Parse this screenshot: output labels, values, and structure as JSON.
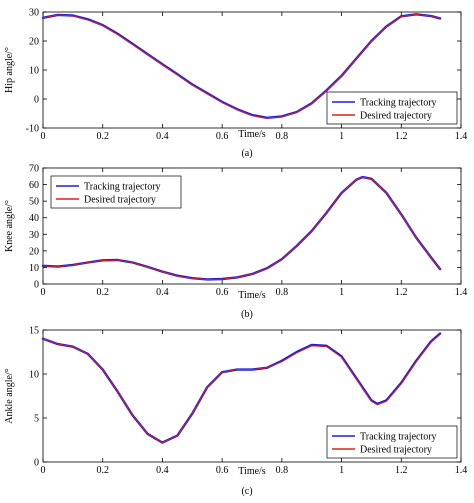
{
  "colors": {
    "tracking": "#1f1fd6",
    "desired": "#e01f1f",
    "axis": "#000000"
  },
  "chart_data": [
    {
      "id": "a",
      "type": "line",
      "caption": "(a)",
      "xlabel": "Time/s",
      "ylabel": "Hip angle/°",
      "xlim": [
        0,
        1.4
      ],
      "ylim": [
        -10,
        30
      ],
      "xticks": [
        "0",
        "0.2",
        "0.4",
        "0.6",
        "0.8",
        "1",
        "1.2",
        "1.4"
      ],
      "yticks": [
        "-10",
        "0",
        "10",
        "20",
        "30"
      ],
      "grid": false,
      "legend": {
        "placement": "bottom-right",
        "entries": [
          "Tracking trajectory",
          "Desired trajectory"
        ]
      },
      "x": [
        0,
        0.05,
        0.1,
        0.15,
        0.2,
        0.25,
        0.3,
        0.35,
        0.4,
        0.45,
        0.5,
        0.55,
        0.6,
        0.65,
        0.7,
        0.75,
        0.8,
        0.85,
        0.9,
        0.95,
        1.0,
        1.05,
        1.1,
        1.15,
        1.2,
        1.25,
        1.3,
        1.33
      ],
      "series": [
        {
          "name": "Tracking trajectory",
          "color": "tracking",
          "values": [
            28,
            29,
            28.8,
            27.5,
            25.5,
            22.5,
            19,
            15.5,
            12,
            8.5,
            5,
            2,
            -1,
            -3.5,
            -5.5,
            -6.5,
            -6,
            -4.5,
            -1.5,
            3,
            8,
            14,
            20,
            25,
            28.5,
            29.2,
            28.6,
            27.8
          ]
        },
        {
          "name": "Desired trajectory",
          "color": "desired",
          "values": [
            28,
            29,
            28.7,
            27.3,
            25.3,
            22.3,
            18.8,
            15.3,
            11.8,
            8.3,
            4.8,
            1.8,
            -1.2,
            -3.7,
            -5.7,
            -6.6,
            -6.1,
            -4.6,
            -1.6,
            2.9,
            7.9,
            13.9,
            19.9,
            24.9,
            28.4,
            29.2,
            28.6,
            27.8
          ]
        }
      ]
    },
    {
      "id": "b",
      "type": "line",
      "caption": "(b)",
      "xlabel": "Time/s",
      "ylabel": "Knee angle/°",
      "xlim": [
        0,
        1.4
      ],
      "ylim": [
        0,
        70
      ],
      "xticks": [
        "0",
        "0.2",
        "0.4",
        "0.6",
        "0.8",
        "1",
        "1.2",
        "1.4"
      ],
      "yticks": [
        "0",
        "10",
        "20",
        "30",
        "40",
        "50",
        "60",
        "70"
      ],
      "grid": false,
      "legend": {
        "placement": "top-left",
        "entries": [
          "Tracking trajectory",
          "Desired trajectory"
        ]
      },
      "x": [
        0,
        0.05,
        0.1,
        0.15,
        0.2,
        0.25,
        0.3,
        0.35,
        0.4,
        0.45,
        0.5,
        0.55,
        0.6,
        0.65,
        0.7,
        0.75,
        0.8,
        0.85,
        0.9,
        0.95,
        1.0,
        1.05,
        1.07,
        1.1,
        1.15,
        1.2,
        1.25,
        1.3,
        1.33
      ],
      "series": [
        {
          "name": "Tracking trajectory",
          "color": "tracking",
          "values": [
            11,
            10.5,
            11.5,
            13,
            14.3,
            14.5,
            13,
            10.3,
            7.5,
            5,
            3.5,
            2.8,
            3,
            4,
            6,
            9.5,
            15,
            23,
            32,
            43,
            55,
            63,
            64.5,
            63.5,
            55,
            42,
            28,
            16,
            9
          ]
        },
        {
          "name": "Desired trajectory",
          "color": "desired",
          "values": [
            11,
            10.4,
            11.4,
            12.9,
            14.2,
            14.4,
            12.9,
            10.2,
            7.4,
            4.9,
            3.4,
            2.7,
            2.9,
            3.9,
            5.9,
            9.4,
            14.9,
            22.9,
            31.9,
            42.9,
            54.9,
            63,
            64.5,
            63.4,
            54.9,
            41.9,
            27.9,
            15.9,
            9
          ]
        }
      ]
    },
    {
      "id": "c",
      "type": "line",
      "caption": "(c)",
      "xlabel": "Time/s",
      "ylabel": "Ankle angle/°",
      "xlim": [
        0,
        1.4
      ],
      "ylim": [
        0,
        15
      ],
      "xticks": [
        "0",
        "0.2",
        "0.4",
        "0.6",
        "0.8",
        "1",
        "1.2",
        "1.4"
      ],
      "yticks": [
        "0",
        "5",
        "10",
        "15"
      ],
      "grid": false,
      "legend": {
        "placement": "bottom-right",
        "entries": [
          "Tracking trajectory",
          "Desired trajectory"
        ]
      },
      "x": [
        0,
        0.05,
        0.1,
        0.15,
        0.2,
        0.25,
        0.3,
        0.35,
        0.4,
        0.45,
        0.5,
        0.55,
        0.6,
        0.65,
        0.7,
        0.75,
        0.8,
        0.85,
        0.9,
        0.95,
        1.0,
        1.05,
        1.1,
        1.12,
        1.15,
        1.2,
        1.25,
        1.3,
        1.33
      ],
      "series": [
        {
          "name": "Tracking trajectory",
          "color": "tracking",
          "values": [
            14,
            13.4,
            13.1,
            12.3,
            10.5,
            8,
            5.3,
            3.2,
            2.2,
            3,
            5.5,
            8.5,
            10.2,
            10.5,
            10.5,
            10.7,
            11.5,
            12.5,
            13.3,
            13.2,
            12,
            9.5,
            7,
            6.6,
            7,
            9,
            11.5,
            13.7,
            14.6
          ]
        },
        {
          "name": "Desired trajectory",
          "color": "desired",
          "values": [
            14,
            13.4,
            13.1,
            12.3,
            10.5,
            8,
            5.3,
            3.2,
            2.2,
            3,
            5.5,
            8.5,
            10.2,
            10.5,
            10.5,
            10.7,
            11.4,
            12.4,
            13.2,
            13.1,
            11.9,
            9.4,
            6.9,
            6.5,
            6.9,
            8.9,
            11.4,
            13.6,
            14.5
          ]
        }
      ]
    }
  ]
}
